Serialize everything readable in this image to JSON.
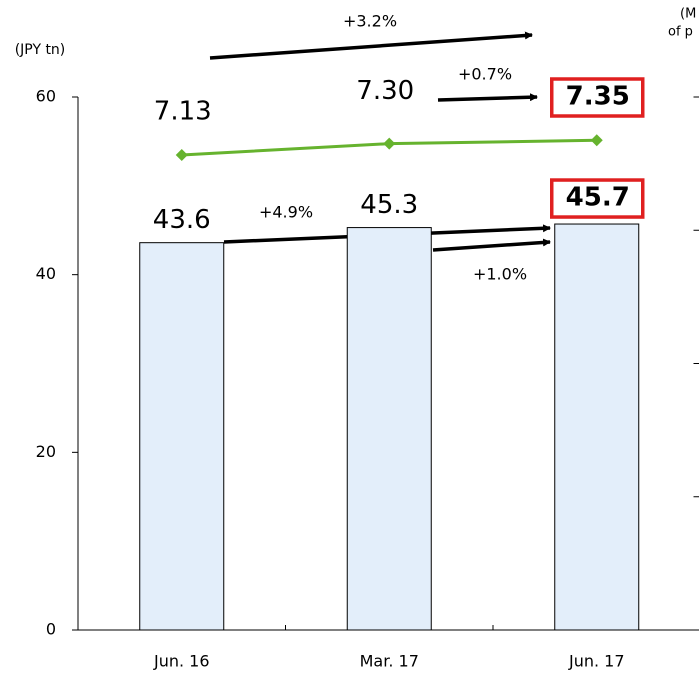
{
  "chart_data": {
    "type": "bar_line",
    "y_label": "(JPY tn)",
    "y2_label": [
      "(M",
      "of p"
    ],
    "categories": [
      "Jun. 16",
      "Mar. 17",
      "Jun. 17"
    ],
    "series": [
      {
        "type": "bar",
        "color": "#e3eefa",
        "values": [
          43.6,
          45.3,
          45.7
        ]
      },
      {
        "type": "line",
        "axis": "y2",
        "color": "#66b32e",
        "values": [
          7.13,
          7.3,
          7.35
        ],
        "value_labels": [
          "7.13",
          "7.30",
          "7.35"
        ]
      }
    ],
    "ylim": [
      0,
      60
    ],
    "yticks": [
      0,
      20,
      40,
      60
    ],
    "y2lim": [
      0,
      8
    ],
    "y2ticks": [
      0,
      2,
      4,
      6,
      8
    ],
    "annotations": [
      "+3.2%",
      "+0.7%",
      "+4.9%",
      "+1.0%"
    ]
  }
}
